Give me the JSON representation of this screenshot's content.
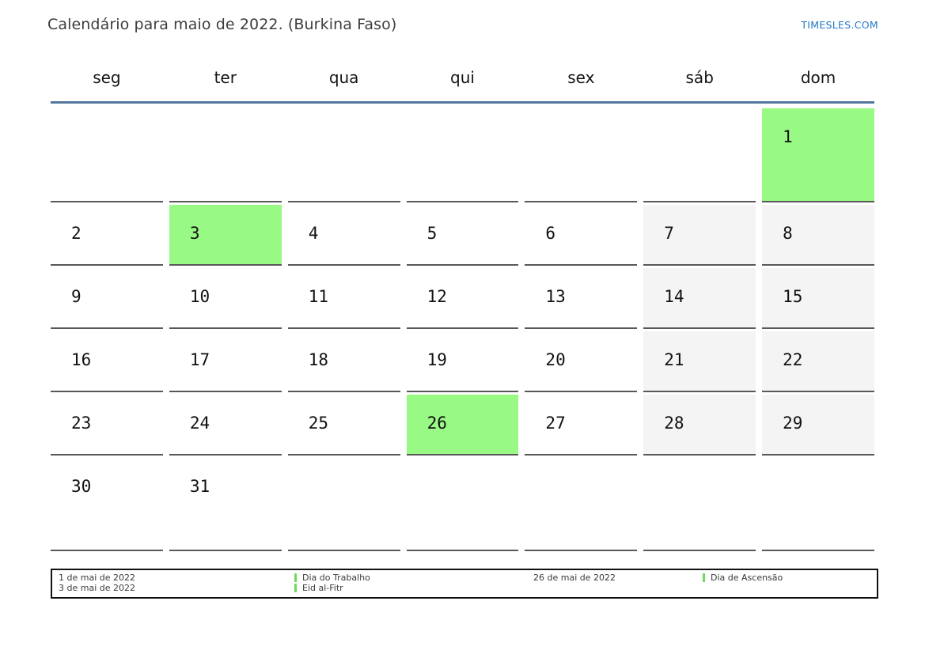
{
  "header": {
    "title": "Calendário para maio de 2022. (Burkina Faso)",
    "site_link": "TIMESLES.COM"
  },
  "weekdays": [
    "seg",
    "ter",
    "qua",
    "qui",
    "sex",
    "sáb",
    "dom"
  ],
  "calendar": {
    "month": "maio",
    "year": "2022",
    "country": "Burkina Faso",
    "weeks": [
      [
        {
          "day": "",
          "type": "blank"
        },
        {
          "day": "",
          "type": "blank"
        },
        {
          "day": "",
          "type": "blank"
        },
        {
          "day": "",
          "type": "blank"
        },
        {
          "day": "",
          "type": "blank"
        },
        {
          "day": "",
          "type": "blank"
        },
        {
          "day": "1",
          "type": "holiday"
        }
      ],
      [
        {
          "day": "2",
          "type": "weekday"
        },
        {
          "day": "3",
          "type": "holiday"
        },
        {
          "day": "4",
          "type": "weekday"
        },
        {
          "day": "5",
          "type": "weekday"
        },
        {
          "day": "6",
          "type": "weekday"
        },
        {
          "day": "7",
          "type": "weekend"
        },
        {
          "day": "8",
          "type": "weekend"
        }
      ],
      [
        {
          "day": "9",
          "type": "weekday"
        },
        {
          "day": "10",
          "type": "weekday"
        },
        {
          "day": "11",
          "type": "weekday"
        },
        {
          "day": "12",
          "type": "weekday"
        },
        {
          "day": "13",
          "type": "weekday"
        },
        {
          "day": "14",
          "type": "weekend"
        },
        {
          "day": "15",
          "type": "weekend"
        }
      ],
      [
        {
          "day": "16",
          "type": "weekday"
        },
        {
          "day": "17",
          "type": "weekday"
        },
        {
          "day": "18",
          "type": "weekday"
        },
        {
          "day": "19",
          "type": "weekday"
        },
        {
          "day": "20",
          "type": "weekday"
        },
        {
          "day": "21",
          "type": "weekend"
        },
        {
          "day": "22",
          "type": "weekend"
        }
      ],
      [
        {
          "day": "23",
          "type": "weekday"
        },
        {
          "day": "24",
          "type": "weekday"
        },
        {
          "day": "25",
          "type": "weekday"
        },
        {
          "day": "26",
          "type": "holiday"
        },
        {
          "day": "27",
          "type": "weekday"
        },
        {
          "day": "28",
          "type": "weekend"
        },
        {
          "day": "29",
          "type": "weekend"
        }
      ],
      [
        {
          "day": "30",
          "type": "weekday"
        },
        {
          "day": "31",
          "type": "weekday"
        },
        {
          "day": "",
          "type": "blank"
        },
        {
          "day": "",
          "type": "blank"
        },
        {
          "day": "",
          "type": "blank"
        },
        {
          "day": "",
          "type": "blank"
        },
        {
          "day": "",
          "type": "blank"
        }
      ]
    ]
  },
  "legend": {
    "groups": [
      {
        "dates": [
          "1 de mai de 2022",
          "3 de mai de 2022"
        ],
        "names": [
          "Dia do Trabalho",
          "Eid al-Fitr"
        ]
      },
      {
        "dates": [
          "26 de mai de 2022"
        ],
        "names": [
          "Dia de Ascensão"
        ]
      }
    ]
  },
  "colors": {
    "holiday_green": "#98f985",
    "weekend_gray": "#f4f4f4",
    "legend_marker_green": "#6edb58",
    "header_line_blue": "#54779e",
    "link_blue": "#2478c8"
  }
}
